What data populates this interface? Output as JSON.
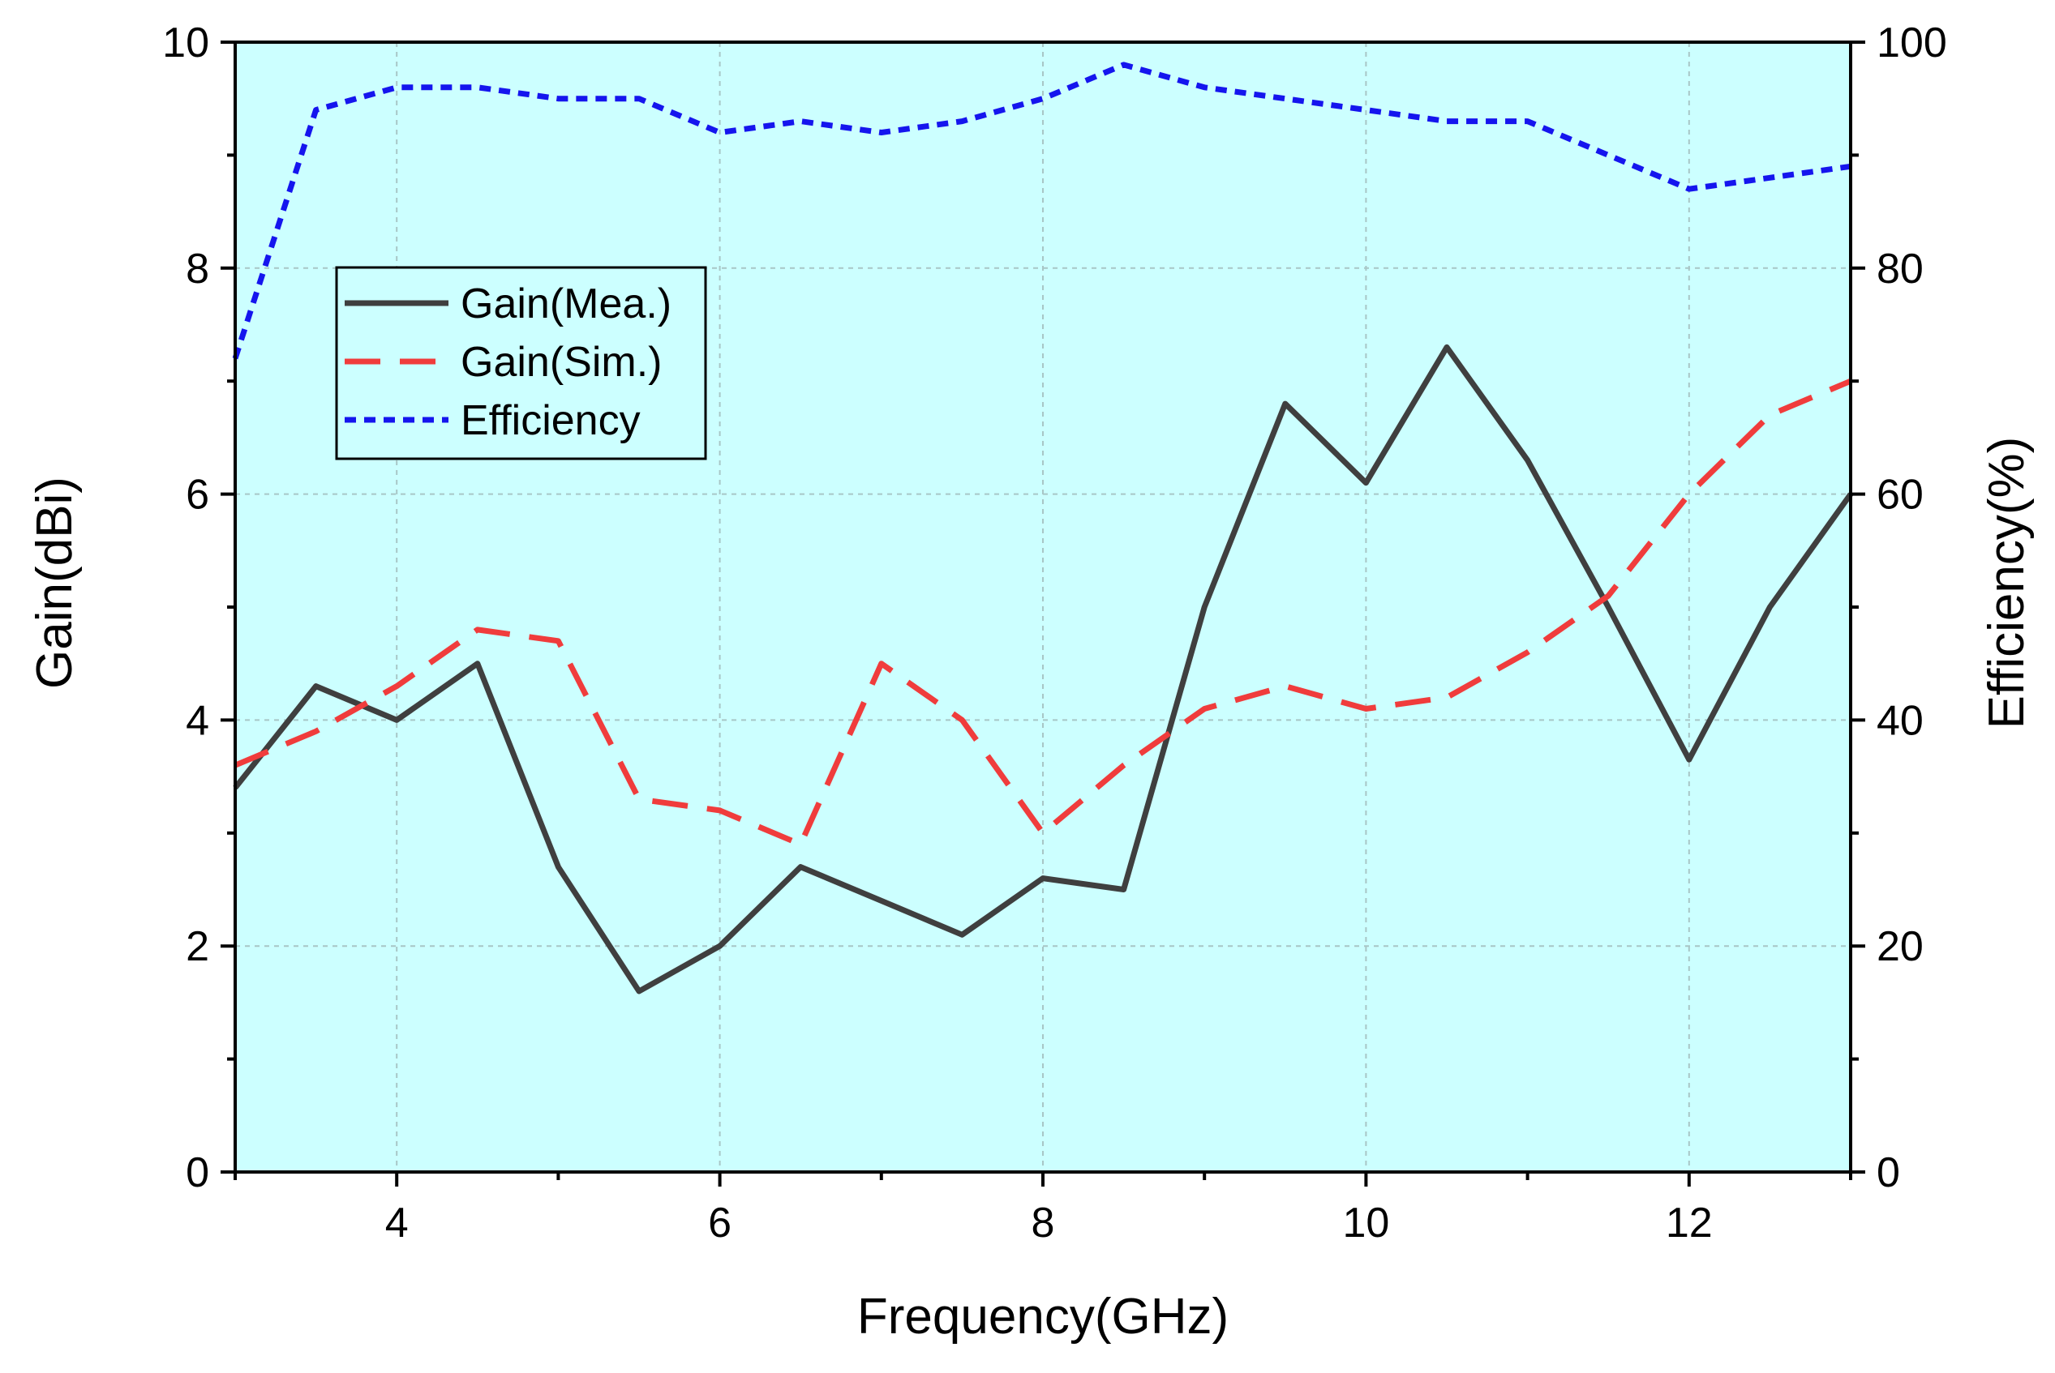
{
  "chart_data": {
    "type": "line",
    "title": "",
    "xlabel": "Frequency(GHz)",
    "ylabel": "Gain(dBi)",
    "y2label": "Efficiency(%)",
    "xlim": [
      3,
      13
    ],
    "ylim": [
      0,
      10
    ],
    "y2lim": [
      0,
      100
    ],
    "x_ticks": [
      "4",
      "6",
      "8",
      "10",
      "12"
    ],
    "y_ticks": [
      "0",
      "2",
      "4",
      "6",
      "8",
      "10"
    ],
    "y2_ticks": [
      "0",
      "20",
      "40",
      "60",
      "80",
      "100"
    ],
    "grid": true,
    "legend_position": "upper-left",
    "background_color": "#ccffff",
    "series": [
      {
        "name": "Gain(Mea.)",
        "axis": "left",
        "color": "#3f3f3f",
        "style": "solid",
        "x": [
          3,
          3.5,
          4,
          4.5,
          5,
          5.5,
          6,
          6.5,
          7,
          7.5,
          8,
          8.5,
          9,
          9.5,
          10,
          10.5,
          11,
          11.5,
          12,
          12.5,
          13
        ],
        "values": [
          3.4,
          4.3,
          4.0,
          4.5,
          2.7,
          1.6,
          2.0,
          2.7,
          2.4,
          2.1,
          2.6,
          2.5,
          5.0,
          6.8,
          6.1,
          7.3,
          6.3,
          5.0,
          3.65,
          5.0,
          6.0
        ]
      },
      {
        "name": "Gain(Sim.)",
        "axis": "left",
        "color": "#f03c3c",
        "style": "dashed",
        "x": [
          3,
          3.5,
          4,
          4.5,
          5,
          5.5,
          6,
          6.5,
          7,
          7.5,
          8,
          8.5,
          9,
          9.5,
          10,
          10.5,
          11,
          11.5,
          12,
          12.5,
          13
        ],
        "values": [
          3.6,
          3.9,
          4.3,
          4.8,
          4.7,
          3.3,
          3.2,
          2.9,
          4.5,
          4.0,
          3.0,
          3.6,
          4.1,
          4.3,
          4.1,
          4.2,
          4.6,
          5.1,
          6.0,
          6.7,
          7.0
        ]
      },
      {
        "name": "Efficiency",
        "axis": "right",
        "color": "#1515ee",
        "style": "dotted",
        "x": [
          3,
          3.5,
          4,
          4.5,
          5,
          5.5,
          6,
          6.5,
          7,
          7.5,
          8,
          8.5,
          9,
          9.5,
          10,
          10.5,
          11,
          11.5,
          12,
          12.5,
          13
        ],
        "values": [
          72,
          94,
          96,
          96,
          95,
          95,
          92,
          93,
          92,
          93,
          95,
          98,
          96,
          95,
          94,
          93,
          93,
          90,
          87,
          88,
          89
        ]
      }
    ]
  }
}
